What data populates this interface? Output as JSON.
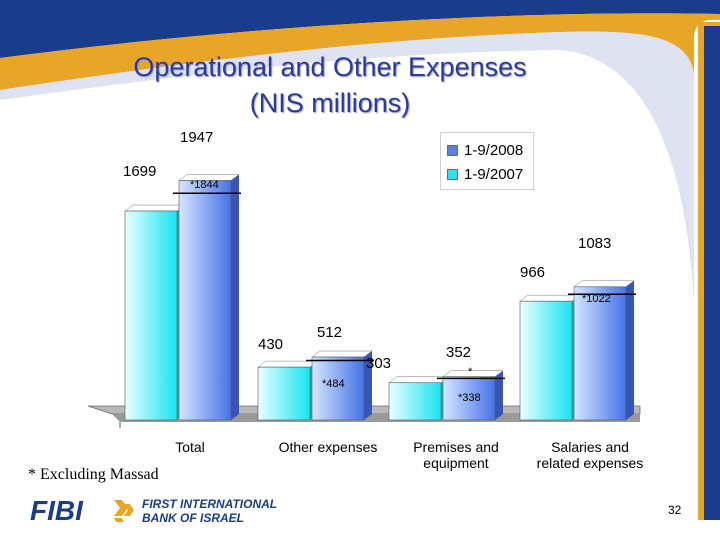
{
  "title_line1": "Operational and Other Expenses",
  "title_line2": "(NIS millions)",
  "colors": {
    "title": "#2b3aa0",
    "series_2008": "#5a82e6",
    "series_2007": "#22e6f0",
    "swoosh_blue": "#1a3c8c",
    "swoosh_gold": "#e8a628"
  },
  "chart_data": {
    "type": "bar",
    "categories": [
      "Total",
      "Other expenses",
      "Premises and equipment",
      "Salaries and related expenses"
    ],
    "series": [
      {
        "name": "1-9/2008",
        "values": [
          1947,
          512,
          352,
          1083
        ],
        "excluding_massad": [
          1844,
          484,
          338,
          1022
        ]
      },
      {
        "name": "1-9/2007",
        "values": [
          1699,
          430,
          303,
          966
        ]
      }
    ],
    "value_labels_2008": [
      "1947",
      "512",
      "352",
      "1083"
    ],
    "value_labels_2007": [
      "1699",
      "430",
      "303",
      "966"
    ],
    "excluding_massad_labels": [
      "*1844",
      "*484",
      "*338",
      "*1022"
    ],
    "extra_marker": "*",
    "legend_placement": "top-right",
    "grid": false
  },
  "footnote": "*  Excluding Massad",
  "logo": {
    "brand": "FIBI",
    "line1": "FIRST INTERNATIONAL",
    "line2": "BANK OF ISRAEL"
  },
  "page_number": "32"
}
